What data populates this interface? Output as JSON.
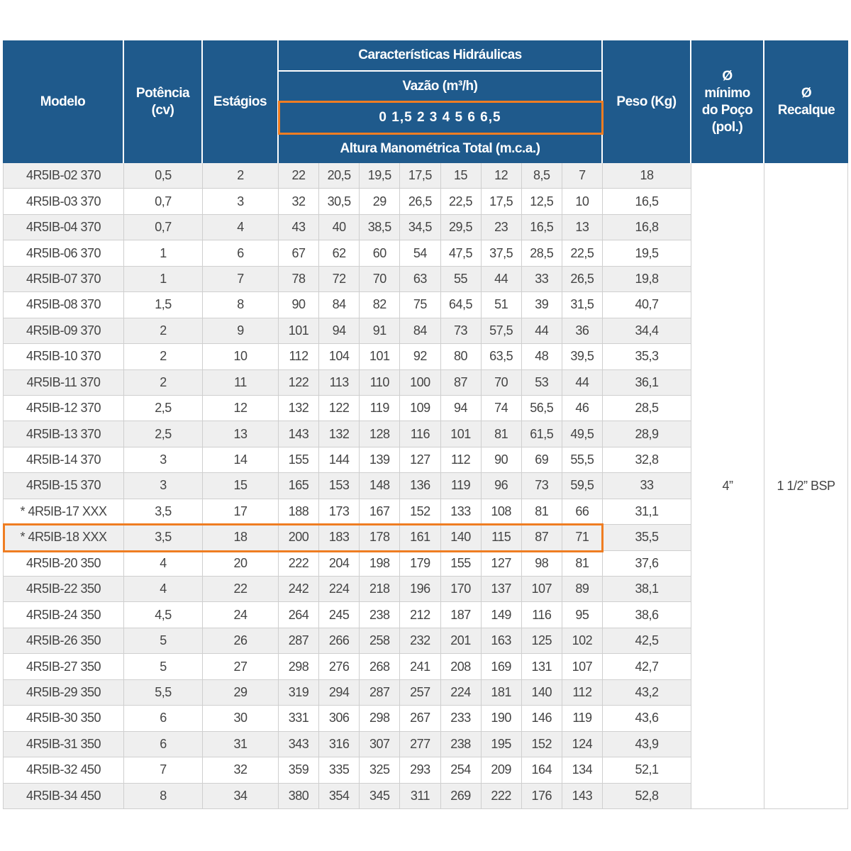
{
  "header": {
    "modelo": "Modelo",
    "potencia": [
      "Potência",
      "(cv)"
    ],
    "estagios": "Estágios",
    "hidraulicas": "Características Hidráulicas",
    "vazao": "Vazão (m³/h)",
    "vazoes": "0 1,5 2 3 4 5 6 6,5",
    "altura": "Altura Manométrica Total (m.c.a.)",
    "peso": "Peso (Kg)",
    "poco": [
      "Ø",
      "mínimo",
      "do Poço",
      "(pol.)"
    ],
    "recalque": [
      "Ø",
      "Recalque"
    ]
  },
  "table": {
    "rows": [
      [
        "4R5IB-02 370",
        "0,5",
        "2",
        "22",
        "20,5",
        "19,5",
        "17,5",
        "15",
        "12",
        "8,5",
        "7",
        "18"
      ],
      [
        "4R5IB-03 370",
        "0,7",
        "3",
        "32",
        "30,5",
        "29",
        "26,5",
        "22,5",
        "17,5",
        "12,5",
        "10",
        "16,5"
      ],
      [
        "4R5IB-04 370",
        "0,7",
        "4",
        "43",
        "40",
        "38,5",
        "34,5",
        "29,5",
        "23",
        "16,5",
        "13",
        "16,8"
      ],
      [
        "4R5IB-06 370",
        "1",
        "6",
        "67",
        "62",
        "60",
        "54",
        "47,5",
        "37,5",
        "28,5",
        "22,5",
        "19,5"
      ],
      [
        "4R5IB-07 370",
        "1",
        "7",
        "78",
        "72",
        "70",
        "63",
        "55",
        "44",
        "33",
        "26,5",
        "19,8"
      ],
      [
        "4R5IB-08 370",
        "1,5",
        "8",
        "90",
        "84",
        "82",
        "75",
        "64,5",
        "51",
        "39",
        "31,5",
        "40,7"
      ],
      [
        "4R5IB-09 370",
        "2",
        "9",
        "101",
        "94",
        "91",
        "84",
        "73",
        "57,5",
        "44",
        "36",
        "34,4"
      ],
      [
        "4R5IB-10 370",
        "2",
        "10",
        "112",
        "104",
        "101",
        "92",
        "80",
        "63,5",
        "48",
        "39,5",
        "35,3"
      ],
      [
        "4R5IB-11 370",
        "2",
        "11",
        "122",
        "113",
        "110",
        "100",
        "87",
        "70",
        "53",
        "44",
        "36,1"
      ],
      [
        "4R5IB-12 370",
        "2,5",
        "12",
        "132",
        "122",
        "119",
        "109",
        "94",
        "74",
        "56,5",
        "46",
        "28,5"
      ],
      [
        "4R5IB-13 370",
        "2,5",
        "13",
        "143",
        "132",
        "128",
        "116",
        "101",
        "81",
        "61,5",
        "49,5",
        "28,9"
      ],
      [
        "4R5IB-14 370",
        "3",
        "14",
        "155",
        "144",
        "139",
        "127",
        "112",
        "90",
        "69",
        "55,5",
        "32,8"
      ],
      [
        "4R5IB-15 370",
        "3",
        "15",
        "165",
        "153",
        "148",
        "136",
        "119",
        "96",
        "73",
        "59,5",
        "33"
      ],
      [
        "* 4R5IB-17 XXX",
        "3,5",
        "17",
        "188",
        "173",
        "167",
        "152",
        "133",
        "108",
        "81",
        "66",
        "31,1"
      ],
      [
        "* 4R5IB-18 XXX",
        "3,5",
        "18",
        "200",
        "183",
        "178",
        "161",
        "140",
        "115",
        "87",
        "71",
        "35,5"
      ],
      [
        "4R5IB-20 350",
        "4",
        "20",
        "222",
        "204",
        "198",
        "179",
        "155",
        "127",
        "98",
        "81",
        "37,6"
      ],
      [
        "4R5IB-22 350",
        "4",
        "22",
        "242",
        "224",
        "218",
        "196",
        "170",
        "137",
        "107",
        "89",
        "38,1"
      ],
      [
        "4R5IB-24 350",
        "4,5",
        "24",
        "264",
        "245",
        "238",
        "212",
        "187",
        "149",
        "116",
        "95",
        "38,6"
      ],
      [
        "4R5IB-26 350",
        "5",
        "26",
        "287",
        "266",
        "258",
        "232",
        "201",
        "163",
        "125",
        "102",
        "42,5"
      ],
      [
        "4R5IB-27 350",
        "5",
        "27",
        "298",
        "276",
        "268",
        "241",
        "208",
        "169",
        "131",
        "107",
        "42,7"
      ],
      [
        "4R5IB-29 350",
        "5,5",
        "29",
        "319",
        "294",
        "287",
        "257",
        "224",
        "181",
        "140",
        "112",
        "43,2"
      ],
      [
        "4R5IB-30 350",
        "6",
        "30",
        "331",
        "306",
        "298",
        "267",
        "233",
        "190",
        "146",
        "119",
        "43,6"
      ],
      [
        "4R5IB-31 350",
        "6",
        "31",
        "343",
        "316",
        "307",
        "277",
        "238",
        "195",
        "152",
        "124",
        "43,9"
      ],
      [
        "4R5IB-32 450",
        "7",
        "32",
        "359",
        "335",
        "325",
        "293",
        "254",
        "209",
        "164",
        "134",
        "52,1"
      ],
      [
        "4R5IB-34 450",
        "8",
        "34",
        "380",
        "354",
        "345",
        "311",
        "269",
        "222",
        "176",
        "143",
        "52,8"
      ]
    ],
    "poco": "4”",
    "recalque": "1 1/2” BSP"
  }
}
